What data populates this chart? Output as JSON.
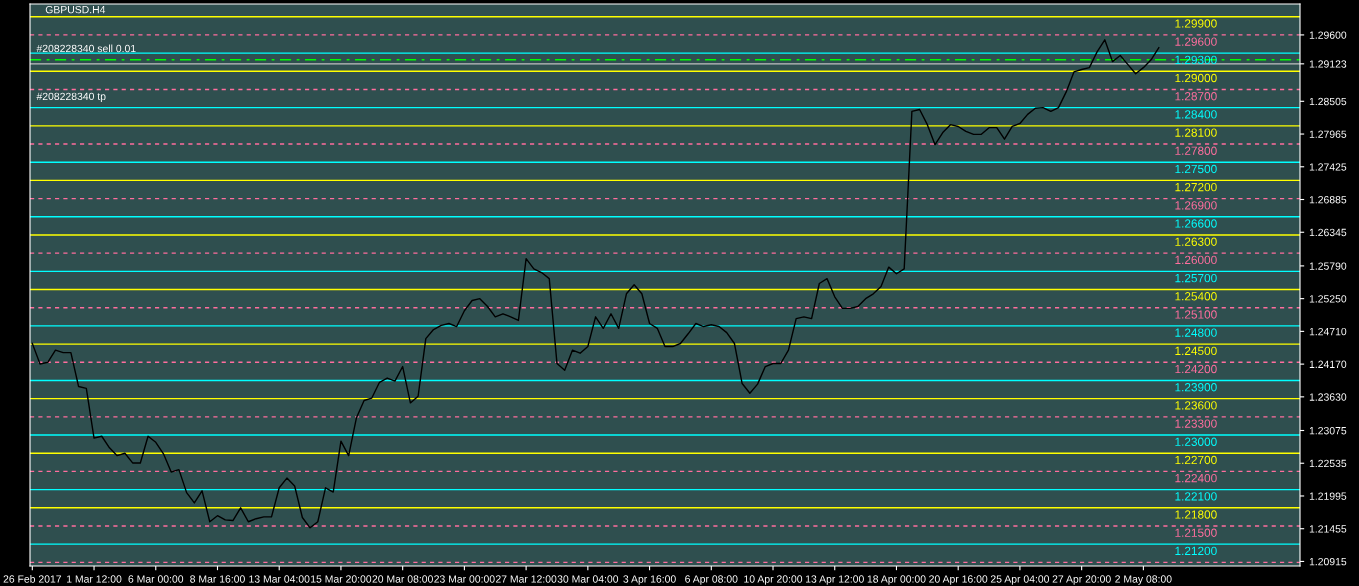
{
  "chart_data": {
    "type": "line",
    "title": "GBPUSD.H4",
    "categories": [
      "26 Feb 2017",
      null,
      null,
      null,
      null,
      null,
      null,
      null,
      "1 Mar 12:00",
      null,
      null,
      null,
      null,
      null,
      null,
      null,
      "6 Mar 00:00",
      null,
      null,
      null,
      null,
      null,
      null,
      null,
      "8 Mar 16:00",
      null,
      null,
      null,
      null,
      null,
      null,
      null,
      "13 Mar 04:00",
      null,
      null,
      null,
      null,
      null,
      null,
      null,
      "15 Mar 20:00",
      null,
      null,
      null,
      null,
      null,
      null,
      null,
      "20 Mar 08:00",
      null,
      null,
      null,
      null,
      null,
      null,
      null,
      "23 Mar 00:00",
      null,
      null,
      null,
      null,
      null,
      null,
      null,
      "27 Mar 12:00",
      null,
      null,
      null,
      null,
      null,
      null,
      null,
      "30 Mar 04:00",
      null,
      null,
      null,
      null,
      null,
      null,
      null,
      "3 Apr 16:00",
      null,
      null,
      null,
      null,
      null,
      null,
      null,
      "6 Apr 08:00",
      null,
      null,
      null,
      null,
      null,
      null,
      null,
      "10 Apr 20:00",
      null,
      null,
      null,
      null,
      null,
      null,
      null,
      "13 Apr 12:00",
      null,
      null,
      null,
      null,
      null,
      null,
      null,
      "18 Apr 00:00",
      null,
      null,
      null,
      null,
      null,
      null,
      null,
      "20 Apr 16:00",
      null,
      null,
      null,
      null,
      null,
      null,
      null,
      "25 Apr 04:00",
      null,
      null,
      null,
      null,
      null,
      null,
      null,
      "27 Apr 20:00",
      null,
      null,
      null,
      null,
      null,
      null,
      null,
      "2 May 08:00",
      null,
      null,
      null,
      null,
      null,
      null,
      null,
      null,
      null,
      null,
      null,
      null,
      null,
      null,
      null,
      null,
      null,
      null,
      null,
      null
    ],
    "series": [
      {
        "color": "#000000",
        "values": [
          1.2451,
          1.2417,
          1.242,
          1.244,
          1.2436,
          1.2436,
          1.238,
          1.2377,
          1.2295,
          1.2298,
          1.2279,
          1.2266,
          1.227,
          1.2254,
          1.2254,
          1.2298,
          1.2288,
          1.2269,
          1.2239,
          1.2243,
          1.2205,
          1.2188,
          1.2208,
          1.2157,
          1.2167,
          1.216,
          1.2159,
          1.218,
          1.2157,
          1.2162,
          1.2165,
          1.2165,
          1.2213,
          1.2229,
          1.2216,
          1.2164,
          1.2147,
          1.2157,
          1.2213,
          1.2206,
          1.229,
          1.2266,
          1.2328,
          1.2357,
          1.2361,
          1.2387,
          1.2394,
          1.2389,
          1.2413,
          1.2353,
          1.2364,
          1.2459,
          1.2474,
          1.2481,
          1.2484,
          1.2479,
          1.2505,
          1.2522,
          1.2525,
          1.2512,
          1.2495,
          1.25,
          1.2495,
          1.2489,
          1.2591,
          1.2574,
          1.2568,
          1.2558,
          1.2418,
          1.2407,
          1.244,
          1.2435,
          1.2446,
          1.2495,
          1.2476,
          1.25,
          1.2476,
          1.2533,
          1.2548,
          1.2533,
          1.2484,
          1.2476,
          1.2446,
          1.2446,
          1.2451,
          1.2467,
          1.2484,
          1.2479,
          1.2482,
          1.2479,
          1.2469,
          1.2451,
          1.2385,
          1.2369,
          1.2384,
          1.2413,
          1.2418,
          1.2418,
          1.244,
          1.2492,
          1.2495,
          1.2492,
          1.255,
          1.2558,
          1.2528,
          1.2509,
          1.2509,
          1.2512,
          1.2525,
          1.2533,
          1.2545,
          1.2577,
          1.2566,
          1.2574,
          1.2834,
          1.2837,
          1.2812,
          1.2779,
          1.2799,
          1.2812,
          1.2809,
          1.2801,
          1.2796,
          1.2796,
          1.2807,
          1.2807,
          1.2788,
          1.2809,
          1.2814,
          1.2829,
          1.2839,
          1.284,
          1.2834,
          1.284,
          1.2866,
          1.2899,
          1.2903,
          1.2906,
          1.2932,
          1.2952,
          1.2916,
          1.2926,
          1.2911,
          1.2896,
          1.2906,
          1.2919,
          1.2939,
          null,
          null,
          null,
          null,
          null,
          null,
          null,
          null,
          null,
          null,
          null,
          null,
          null,
          null,
          null,
          null,
          null,
          null
        ]
      }
    ],
    "ylim": [
      1.2084,
      1.3011
    ],
    "yticks": [
      {
        "value": 1.296,
        "label": "1.29600"
      },
      {
        "value": 1.29123,
        "label": "1.29123"
      },
      {
        "value": 1.28505,
        "label": "1.28505"
      },
      {
        "value": 1.27965,
        "label": "1.27965"
      },
      {
        "value": 1.27425,
        "label": "1.27425"
      },
      {
        "value": 1.26885,
        "label": "1.26885"
      },
      {
        "value": 1.26345,
        "label": "1.26345"
      },
      {
        "value": 1.2579,
        "label": "1.25790"
      },
      {
        "value": 1.2525,
        "label": "1.25250"
      },
      {
        "value": 1.2471,
        "label": "1.24710"
      },
      {
        "value": 1.2417,
        "label": "1.24170"
      },
      {
        "value": 1.2363,
        "label": "1.23630"
      },
      {
        "value": 1.23075,
        "label": "1.23075"
      },
      {
        "value": 1.22535,
        "label": "1.22535"
      },
      {
        "value": 1.21995,
        "label": "1.21995"
      },
      {
        "value": 1.21455,
        "label": "1.21455"
      },
      {
        "value": 1.20915,
        "label": "1.20915"
      }
    ],
    "ref_lines": [
      {
        "axis": "y",
        "value": 1.299,
        "label": "1.29900",
        "color": "#ffff00",
        "line_style": "solid"
      },
      {
        "axis": "y",
        "value": 1.296,
        "label": "1.29600",
        "color": "#ff6e9e",
        "line_style": "dashed"
      },
      {
        "axis": "y",
        "value": 1.293,
        "label": "1.29300",
        "color": "#00ffff",
        "line_style": "solid"
      },
      {
        "axis": "y",
        "value": 1.2919,
        "color": "#00ff00",
        "line_style": "dashdot"
      },
      {
        "axis": "y",
        "value": 1.29123,
        "color": "#c0c0c0",
        "line_style": "solid"
      },
      {
        "axis": "y",
        "value": 1.29,
        "label": "1.29000",
        "color": "#ffff00",
        "line_style": "solid"
      },
      {
        "axis": "y",
        "value": 1.287,
        "label": "1.28700",
        "color": "#ff6e9e",
        "line_style": "dashed"
      },
      {
        "axis": "y",
        "value": 1.284,
        "label": "1.28400",
        "color": "#00ffff",
        "line_style": "solid"
      },
      {
        "axis": "y",
        "value": 1.281,
        "label": "1.28100",
        "color": "#ffff00",
        "line_style": "solid"
      },
      {
        "axis": "y",
        "value": 1.278,
        "label": "1.27800",
        "color": "#ff6e9e",
        "line_style": "dashed"
      },
      {
        "axis": "y",
        "value": 1.275,
        "label": "1.27500",
        "color": "#00ffff",
        "line_style": "solid"
      },
      {
        "axis": "y",
        "value": 1.272,
        "label": "1.27200",
        "color": "#ffff00",
        "line_style": "solid"
      },
      {
        "axis": "y",
        "value": 1.269,
        "label": "1.26900",
        "color": "#ff6e9e",
        "line_style": "dashed"
      },
      {
        "axis": "y",
        "value": 1.266,
        "label": "1.26600",
        "color": "#00ffff",
        "line_style": "solid"
      },
      {
        "axis": "y",
        "value": 1.263,
        "label": "1.26300",
        "color": "#ffff00",
        "line_style": "solid"
      },
      {
        "axis": "y",
        "value": 1.26,
        "label": "1.26000",
        "color": "#ff6e9e",
        "line_style": "dashed"
      },
      {
        "axis": "y",
        "value": 1.257,
        "label": "1.25700",
        "color": "#00ffff",
        "line_style": "solid"
      },
      {
        "axis": "y",
        "value": 1.254,
        "label": "1.25400",
        "color": "#ffff00",
        "line_style": "solid"
      },
      {
        "axis": "y",
        "value": 1.251,
        "label": "1.25100",
        "color": "#ff6e9e",
        "line_style": "dashed"
      },
      {
        "axis": "y",
        "value": 1.248,
        "label": "1.24800",
        "color": "#00ffff",
        "line_style": "solid"
      },
      {
        "axis": "y",
        "value": 1.245,
        "label": "1.24500",
        "color": "#ffff00",
        "line_style": "solid"
      },
      {
        "axis": "y",
        "value": 1.242,
        "label": "1.24200",
        "color": "#ff6e9e",
        "line_style": "dashed"
      },
      {
        "axis": "y",
        "value": 1.239,
        "label": "1.23900",
        "color": "#00ffff",
        "line_style": "solid"
      },
      {
        "axis": "y",
        "value": 1.236,
        "label": "1.23600",
        "color": "#ffff00",
        "line_style": "solid"
      },
      {
        "axis": "y",
        "value": 1.233,
        "label": "1.23300",
        "color": "#ff6e9e",
        "line_style": "dashed"
      },
      {
        "axis": "y",
        "value": 1.23,
        "label": "1.23000",
        "color": "#00ffff",
        "line_style": "solid"
      },
      {
        "axis": "y",
        "value": 1.227,
        "label": "1.22700",
        "color": "#ffff00",
        "line_style": "solid"
      },
      {
        "axis": "y",
        "value": 1.224,
        "label": "1.22400",
        "color": "#ff6e9e",
        "line_style": "dashed"
      },
      {
        "axis": "y",
        "value": 1.221,
        "label": "1.22100",
        "color": "#00ffff",
        "line_style": "solid"
      },
      {
        "axis": "y",
        "value": 1.218,
        "label": "1.21800",
        "color": "#ffff00",
        "line_style": "solid"
      },
      {
        "axis": "y",
        "value": 1.215,
        "label": "1.21500",
        "color": "#ff6e9e",
        "line_style": "dashed"
      },
      {
        "axis": "y",
        "value": 1.212,
        "label": "1.21200",
        "color": "#00ffff",
        "line_style": "solid"
      },
      {
        "axis": "y",
        "value": 1.209,
        "color": "#ff6e9e",
        "line_style": "dashed"
      }
    ],
    "annotations": [
      {
        "text": "#208228340 sell 0.01",
        "x": "26 Feb 2017",
        "y": 1.2919
      },
      {
        "text": "#208228340 tp",
        "x": "26 Feb 2017",
        "y": 1.284
      }
    ],
    "grid": false,
    "legend": false
  }
}
